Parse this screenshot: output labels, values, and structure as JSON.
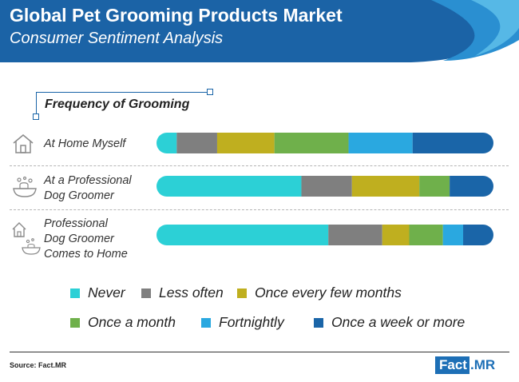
{
  "header": {
    "title": "Global Pet Grooming Products Market",
    "subtitle": "Consumer Sentiment Analysis"
  },
  "chart_data": {
    "type": "bar",
    "orientation": "horizontal",
    "stacked": true,
    "title": "Frequency of Grooming",
    "categories": [
      [
        "At Home Myself"
      ],
      [
        "At a Professional",
        "Dog Groomer"
      ],
      [
        "Professional",
        "Dog Groomer",
        "Comes to Home"
      ]
    ],
    "series": [
      {
        "name": "Never",
        "color": "#2cd0d6",
        "values": [
          6,
          43,
          51
        ]
      },
      {
        "name": "Less often",
        "color": "#7f7f7f",
        "values": [
          12,
          15,
          16
        ]
      },
      {
        "name": "Once every few months",
        "color": "#bfaf1f",
        "values": [
          17,
          20,
          8
        ]
      },
      {
        "name": "Once a month",
        "color": "#6fb04b",
        "values": [
          22,
          9,
          10
        ]
      },
      {
        "name": "Fortnightly",
        "color": "#2aa8e0",
        "values": [
          19,
          0,
          6
        ]
      },
      {
        "name": "Once a week or more",
        "color": "#1a65a8",
        "values": [
          24,
          13,
          9
        ]
      }
    ],
    "xlim": [
      0,
      100
    ],
    "legend_position": "bottom"
  },
  "footer": {
    "source": "Source: Fact.MR",
    "logo_left": "Fact",
    "logo_right": ".MR"
  }
}
